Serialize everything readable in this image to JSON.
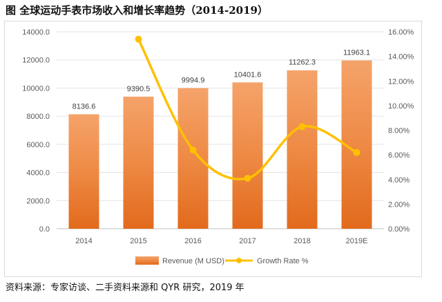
{
  "title": "图  全球运动手表市场收入和增长率趋势（2014-2019）",
  "source": "资料来源：专家访谈、二手资料来源和 QYR 研究，2019 年",
  "chart_data": {
    "type": "bar",
    "categories": [
      "2014",
      "2015",
      "2016",
      "2017",
      "2018",
      "2019E"
    ],
    "series": [
      {
        "name": "Revenue (M USD)",
        "type": "bar",
        "axis": "left",
        "color": "#ED7D31",
        "values": [
          8136.6,
          9390.5,
          9994.9,
          10401.6,
          11262.3,
          11963.1
        ],
        "labels": [
          "8136.6",
          "9390.5",
          "9994.9",
          "10401.6",
          "11262.3",
          "11963.1"
        ]
      },
      {
        "name": "Growth Rate %",
        "type": "line",
        "axis": "right",
        "color": "#FFC000",
        "values": [
          null,
          15.4,
          6.4,
          4.1,
          8.3,
          6.2
        ]
      }
    ],
    "y_left": {
      "min": 0,
      "max": 14000,
      "step": 2000,
      "ticks": [
        "0.0",
        "2000.0",
        "4000.0",
        "6000.0",
        "8000.0",
        "10000.0",
        "12000.0",
        "14000.0"
      ]
    },
    "y_right": {
      "min": 0,
      "max": 16,
      "step": 2,
      "ticks": [
        "0.00%",
        "2.00%",
        "4.00%",
        "6.00%",
        "8.00%",
        "10.00%",
        "12.00%",
        "14.00%",
        "16.00%"
      ]
    },
    "grid": true,
    "legend_position": "bottom"
  }
}
